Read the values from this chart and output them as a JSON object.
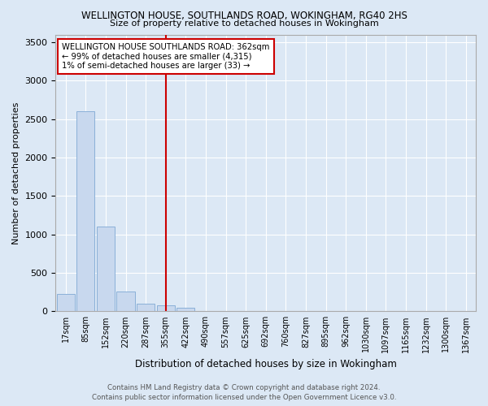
{
  "title": "WELLINGTON HOUSE, SOUTHLANDS ROAD, WOKINGHAM, RG40 2HS",
  "subtitle": "Size of property relative to detached houses in Wokingham",
  "xlabel": "Distribution of detached houses by size in Wokingham",
  "ylabel": "Number of detached properties",
  "footer_line1": "Contains HM Land Registry data © Crown copyright and database right 2024.",
  "footer_line2": "Contains public sector information licensed under the Open Government Licence v3.0.",
  "bin_labels": [
    "17sqm",
    "85sqm",
    "152sqm",
    "220sqm",
    "287sqm",
    "355sqm",
    "422sqm",
    "490sqm",
    "557sqm",
    "625sqm",
    "692sqm",
    "760sqm",
    "827sqm",
    "895sqm",
    "962sqm",
    "1030sqm",
    "1097sqm",
    "1165sqm",
    "1232sqm",
    "1300sqm",
    "1367sqm"
  ],
  "bar_values": [
    230,
    2600,
    1100,
    260,
    100,
    75,
    50,
    0,
    0,
    0,
    0,
    0,
    0,
    0,
    0,
    0,
    0,
    0,
    0,
    0,
    0
  ],
  "bar_color": "#c8d8ee",
  "bar_edge_color": "#8ab0d8",
  "vline_x_index": 5,
  "vline_color": "#cc0000",
  "ylim": [
    0,
    3600
  ],
  "yticks": [
    0,
    500,
    1000,
    1500,
    2000,
    2500,
    3000,
    3500
  ],
  "annotation_title": "WELLINGTON HOUSE SOUTHLANDS ROAD: 362sqm",
  "annotation_line1": "← 99% of detached houses are smaller (4,315)",
  "annotation_line2": "1% of semi-detached houses are larger (33) →",
  "annotation_box_color": "#ffffff",
  "annotation_box_edge": "#cc0000",
  "background_color": "#dce8f5",
  "grid_color": "#ffffff",
  "spine_color": "#aaaaaa"
}
